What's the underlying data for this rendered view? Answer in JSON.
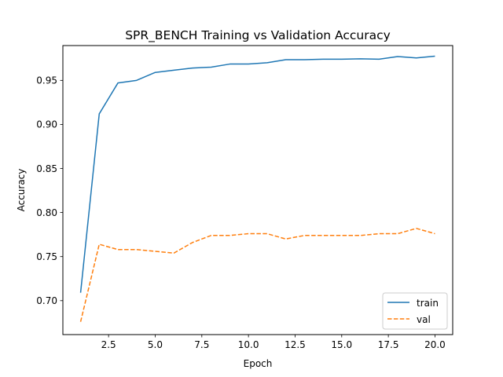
{
  "chart_data": {
    "type": "line",
    "title": "SPR_BENCH Training vs Validation Accuracy",
    "xlabel": "Epoch",
    "ylabel": "Accuracy",
    "xlim": [
      0.05,
      20.95
    ],
    "ylim": [
      0.6615,
      0.9895
    ],
    "xticks": [
      2.5,
      5.0,
      7.5,
      10.0,
      12.5,
      15.0,
      17.5,
      20.0
    ],
    "xtick_labels": [
      "2.5",
      "5.0",
      "7.5",
      "10.0",
      "12.5",
      "15.0",
      "17.5",
      "20.0"
    ],
    "yticks": [
      0.7,
      0.75,
      0.8,
      0.85,
      0.9,
      0.95
    ],
    "ytick_labels": [
      "0.70",
      "0.75",
      "0.80",
      "0.85",
      "0.90",
      "0.95"
    ],
    "grid": false,
    "legend_position": "lower-right",
    "x": [
      1,
      2,
      3,
      4,
      5,
      6,
      7,
      8,
      9,
      10,
      11,
      12,
      13,
      14,
      15,
      16,
      17,
      18,
      19,
      20
    ],
    "series": [
      {
        "name": "train",
        "color": "#1f77b4",
        "style": "solid",
        "values": [
          0.709,
          0.912,
          0.947,
          0.95,
          0.959,
          0.9615,
          0.964,
          0.965,
          0.9685,
          0.9685,
          0.97,
          0.9735,
          0.9735,
          0.974,
          0.974,
          0.9745,
          0.974,
          0.977,
          0.9755,
          0.9775
        ]
      },
      {
        "name": "val",
        "color": "#ff7f0e",
        "style": "dashed",
        "values": [
          0.676,
          0.764,
          0.758,
          0.758,
          0.756,
          0.754,
          0.766,
          0.774,
          0.774,
          0.776,
          0.776,
          0.77,
          0.774,
          0.774,
          0.774,
          0.774,
          0.776,
          0.776,
          0.782,
          0.776
        ]
      }
    ]
  }
}
